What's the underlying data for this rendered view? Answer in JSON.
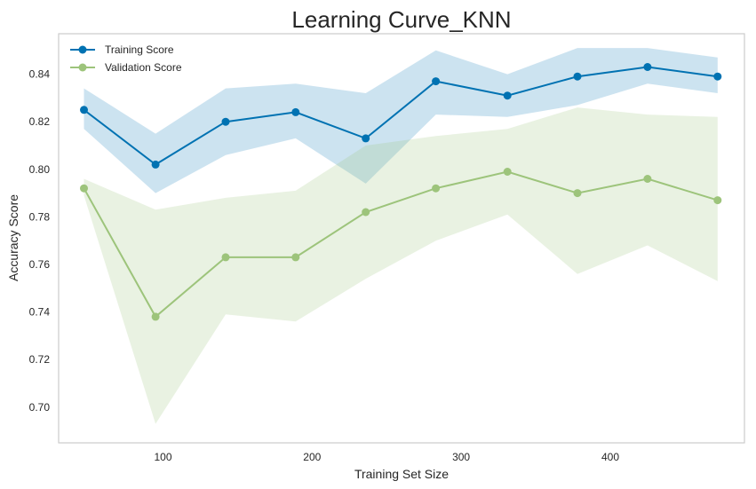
{
  "chart_data": {
    "type": "line",
    "title": "Learning Curve_KNN",
    "xlabel": "Training Set Size",
    "ylabel": "Accuracy Score",
    "x": [
      47,
      95,
      142,
      189,
      236,
      283,
      331,
      378,
      425,
      472
    ],
    "xticks": [
      100,
      200,
      300,
      400
    ],
    "yticks": [
      0.7,
      0.72,
      0.74,
      0.76,
      0.78,
      0.8,
      0.82,
      0.84
    ],
    "xlim": [
      30,
      490
    ],
    "ylim": [
      0.685,
      0.857
    ],
    "grid": false,
    "legend": "top-left",
    "series": [
      {
        "name": "Training Score",
        "color": "#0072b2",
        "band_color": "#0072b2",
        "values": [
          0.825,
          0.802,
          0.82,
          0.824,
          0.813,
          0.837,
          0.831,
          0.839,
          0.843,
          0.839
        ],
        "lower": [
          0.817,
          0.79,
          0.806,
          0.813,
          0.794,
          0.823,
          0.822,
          0.827,
          0.836,
          0.832
        ],
        "upper": [
          0.834,
          0.815,
          0.834,
          0.836,
          0.832,
          0.85,
          0.84,
          0.851,
          0.851,
          0.847
        ]
      },
      {
        "name": "Validation Score",
        "color": "#9dc47b",
        "band_color": "#9dc47b",
        "values": [
          0.792,
          0.738,
          0.763,
          0.763,
          0.782,
          0.792,
          0.799,
          0.79,
          0.796,
          0.787
        ],
        "lower": [
          0.789,
          0.693,
          0.739,
          0.736,
          0.754,
          0.77,
          0.781,
          0.756,
          0.768,
          0.753
        ],
        "upper": [
          0.796,
          0.783,
          0.788,
          0.791,
          0.81,
          0.814,
          0.817,
          0.826,
          0.823,
          0.822
        ]
      }
    ]
  }
}
